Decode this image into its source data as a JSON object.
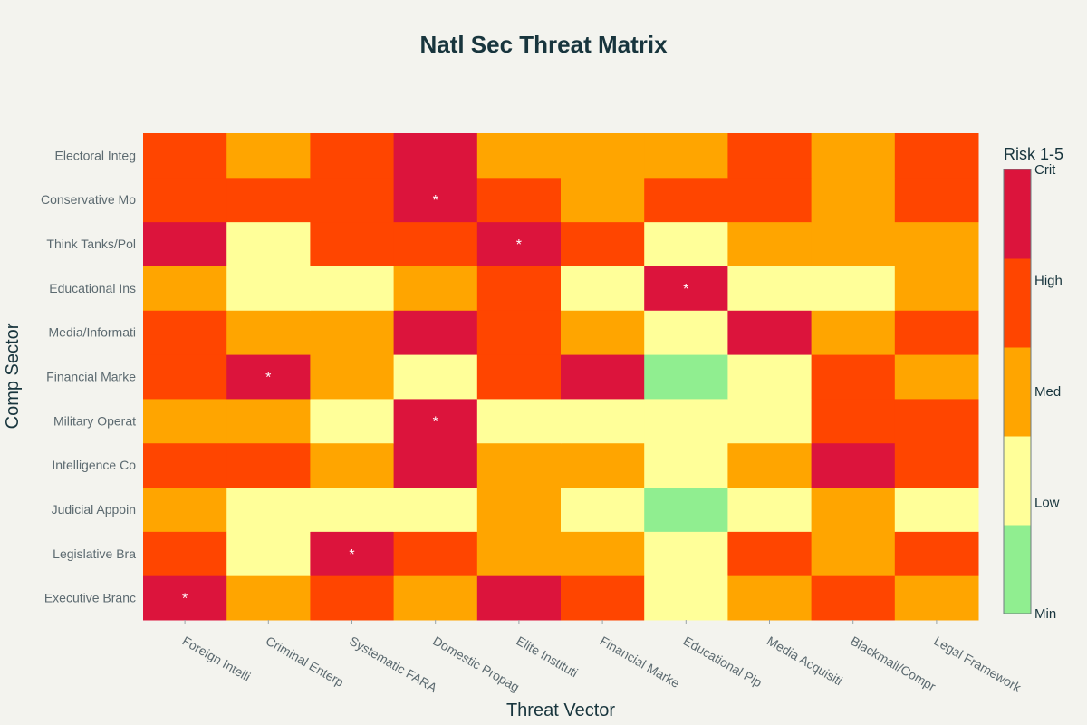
{
  "chart_data": {
    "type": "heatmap",
    "title": "Natl Sec Threat Matrix",
    "xlabel": "Threat Vector",
    "ylabel": "Comp Sector",
    "x_categories": [
      "Foreign Intelli",
      "Criminal Enterp",
      "Systematic FARA",
      "Domestic Propag",
      "Elite Instituti",
      "Financial Marke",
      "Educational Pip",
      "Media Acquisiti",
      "Blackmail/Compr",
      "Legal Framework"
    ],
    "y_categories": [
      "Executive Branc",
      "Legislative Bra",
      "Judicial Appoin",
      "Intelligence Co",
      "Military Operat",
      "Financial Marke",
      "Media/Informati",
      "Educational Ins",
      "Think Tanks/Pol",
      "Conservative Mo",
      "Electoral Integ"
    ],
    "values": [
      [
        5,
        3,
        4,
        3,
        5,
        4,
        2,
        3,
        4,
        3
      ],
      [
        4,
        2,
        5,
        4,
        3,
        3,
        2,
        4,
        3,
        4
      ],
      [
        3,
        2,
        2,
        2,
        3,
        2,
        1,
        2,
        3,
        2
      ],
      [
        4,
        4,
        3,
        5,
        3,
        3,
        2,
        3,
        5,
        4
      ],
      [
        3,
        3,
        2,
        5,
        2,
        2,
        2,
        2,
        4,
        4
      ],
      [
        4,
        5,
        3,
        2,
        4,
        5,
        1,
        2,
        4,
        3
      ],
      [
        4,
        3,
        3,
        5,
        4,
        3,
        2,
        5,
        3,
        4
      ],
      [
        3,
        2,
        2,
        3,
        4,
        2,
        5,
        2,
        2,
        3
      ],
      [
        5,
        2,
        4,
        4,
        5,
        4,
        2,
        3,
        3,
        3
      ],
      [
        4,
        4,
        4,
        5,
        4,
        3,
        4,
        4,
        3,
        4
      ],
      [
        4,
        3,
        4,
        5,
        3,
        3,
        3,
        4,
        3,
        4
      ]
    ],
    "annotations": [
      {
        "x": "Foreign Intelli",
        "y": "Executive Branc",
        "text": "*"
      },
      {
        "x": "Systematic FARA",
        "y": "Legislative Bra",
        "text": "*"
      },
      {
        "x": "Domestic Propag",
        "y": "Military Operat",
        "text": "*"
      },
      {
        "x": "Criminal Enterp",
        "y": "Financial Marke",
        "text": "*"
      },
      {
        "x": "Educational Pip",
        "y": "Educational Ins",
        "text": "*"
      },
      {
        "x": "Elite Instituti",
        "y": "Think Tanks/Pol",
        "text": "*"
      },
      {
        "x": "Domestic Propag",
        "y": "Conservative Mo",
        "text": "*"
      }
    ],
    "zlim": [
      1,
      5
    ],
    "colorscale": [
      {
        "level": 1,
        "color": "#90ee90"
      },
      {
        "level": 2,
        "color": "#ffff99"
      },
      {
        "level": 3,
        "color": "#ffa500"
      },
      {
        "level": 4,
        "color": "#ff4500"
      },
      {
        "level": 5,
        "color": "#dc143c"
      }
    ],
    "colorbar": {
      "title": "Risk 1-5",
      "tick_values": [
        1,
        2,
        3,
        4,
        5
      ],
      "tick_labels": [
        "Min",
        "Low",
        "Med",
        "High",
        "Crit"
      ]
    }
  }
}
